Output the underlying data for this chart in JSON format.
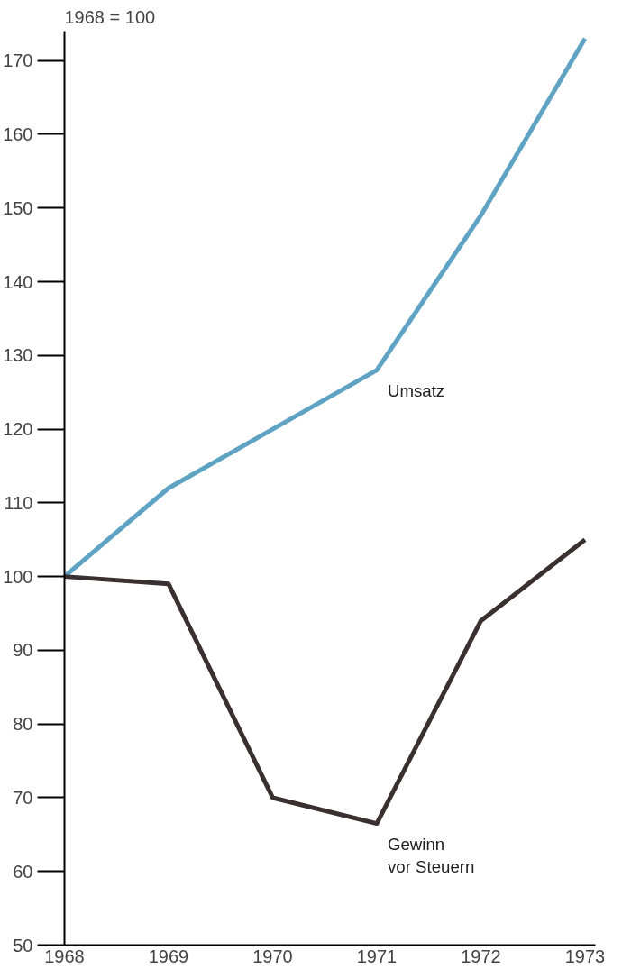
{
  "chart_data": {
    "type": "line",
    "title": "1968 = 100",
    "x": [
      1968,
      1969,
      1970,
      1971,
      1972,
      1973
    ],
    "series": [
      {
        "name": "Umsatz",
        "color": "#5fa3c4",
        "values": [
          100,
          112,
          120,
          128,
          149,
          173
        ]
      },
      {
        "name": "Gewinn vor Steuern",
        "color": "#3a3030",
        "values": [
          100,
          99,
          70,
          66.5,
          94,
          105
        ]
      }
    ],
    "xlim": [
      1968,
      1973.1
    ],
    "xticks": [
      1968,
      1969,
      1970,
      1971,
      1972,
      1973
    ],
    "ylim": [
      50,
      174
    ],
    "yticks": [
      50,
      60,
      70,
      80,
      90,
      100,
      110,
      120,
      130,
      140,
      150,
      160,
      170
    ],
    "marker": "none",
    "line_style": "solid"
  }
}
